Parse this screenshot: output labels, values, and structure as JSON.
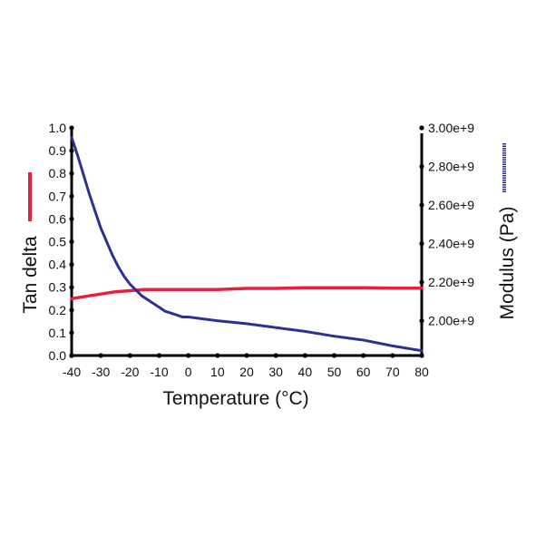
{
  "chart_data": {
    "type": "line",
    "xlabel": "Temperature (°C)",
    "ylabel_left": "Tan delta",
    "ylabel_right": "Modulus (Pa)",
    "xlim": [
      -40,
      80
    ],
    "ylim_left": [
      0.0,
      1.0
    ],
    "ylim_right": [
      1820000000.0,
      3000000000.0
    ],
    "x_ticks": [
      "-40",
      "-30",
      "-20",
      "-10",
      "0",
      "10",
      "20",
      "30",
      "40",
      "50",
      "60",
      "70",
      "80"
    ],
    "y_left_ticks": [
      "0.0",
      "0.1",
      "0.2",
      "0.3",
      "0.4",
      "0.5",
      "0.6",
      "0.7",
      "0.8",
      "0.9",
      "1.0"
    ],
    "y_right_ticks": [
      "2.00e+9",
      "2.20e+9",
      "2.40e+9",
      "2.60e+9",
      "2.80e+9",
      "3.00e+9"
    ],
    "series": [
      {
        "name": "Tan delta",
        "axis": "left",
        "color": "#e8203f",
        "x": [
          -40,
          -35,
          -30,
          -25,
          -20,
          -15,
          -10,
          -5,
          0,
          10,
          20,
          30,
          40,
          50,
          60,
          70,
          80
        ],
        "y": [
          0.25,
          0.26,
          0.27,
          0.28,
          0.285,
          0.29,
          0.29,
          0.29,
          0.29,
          0.29,
          0.295,
          0.295,
          0.298,
          0.298,
          0.298,
          0.296,
          0.296
        ]
      },
      {
        "name": "Modulus (Pa)",
        "axis": "right",
        "color": "#2e2f8f",
        "x": [
          -40,
          -38,
          -36,
          -34,
          -32,
          -30,
          -28,
          -26,
          -24,
          -22,
          -20,
          -18,
          -16,
          -14,
          -12,
          -10,
          -8,
          -6,
          -4,
          -2,
          0,
          10,
          20,
          30,
          40,
          50,
          60,
          70,
          80
        ],
        "y": [
          2950000000.0,
          2860000000.0,
          2760000000.0,
          2660000000.0,
          2570000000.0,
          2480000000.0,
          2410000000.0,
          2340000000.0,
          2280000000.0,
          2230000000.0,
          2190000000.0,
          2160000000.0,
          2130000000.0,
          2110000000.0,
          2090000000.0,
          2070000000.0,
          2050000000.0,
          2040000000.0,
          2030000000.0,
          2020000000.0,
          2020000000.0,
          2000000000.0,
          1985000000.0,
          1965000000.0,
          1945000000.0,
          1920000000.0,
          1900000000.0,
          1870000000.0,
          1845000000.0
        ]
      }
    ]
  }
}
